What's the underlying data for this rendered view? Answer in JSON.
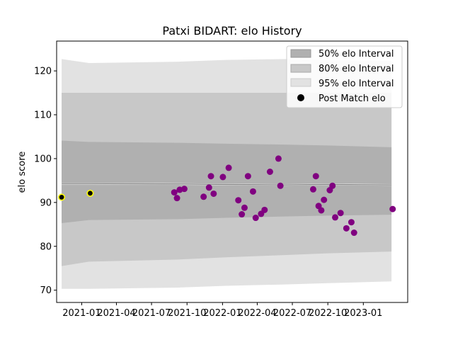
{
  "chart_data": {
    "type": "scatter",
    "title": "Patxi BIDART: elo History",
    "xlabel": "",
    "ylabel": "elo score",
    "x_axis": "date",
    "xlim": [
      "2020-10-28",
      "2023-04-26"
    ],
    "ylim": [
      67.2,
      126.8
    ],
    "x_ticks": [
      "2021-01",
      "2021-04",
      "2021-07",
      "2021-10",
      "2022-01",
      "2022-04",
      "2022-07",
      "2022-10",
      "2023-01"
    ],
    "y_ticks": [
      70,
      80,
      90,
      100,
      110,
      120
    ],
    "grid": false,
    "legend_placement": "top-right",
    "legend": [
      {
        "label": "50% elo Interval",
        "kind": "patch",
        "color": "#b0b0b0"
      },
      {
        "label": "80% elo Interval",
        "kind": "patch",
        "color": "#c8c8c8"
      },
      {
        "label": "95% elo Interval",
        "kind": "patch",
        "color": "#e2e2e2"
      },
      {
        "label": "Post Match elo",
        "kind": "marker",
        "color": "#000000"
      }
    ],
    "intervals": {
      "dates": [
        "2020-11-10",
        "2021-01-20",
        "2021-09-10",
        "2022-01-10",
        "2022-06-10",
        "2022-10-01",
        "2023-03-15"
      ],
      "mean": [
        94.3,
        94.3,
        94.2,
        94.1,
        94.0,
        94.1,
        94.0
      ],
      "p50": {
        "low": [
          85.3,
          86.0,
          86.2,
          86.5,
          86.8,
          87.0,
          87.2
        ],
        "high": [
          104.1,
          103.8,
          103.6,
          103.4,
          103.2,
          103.0,
          102.6
        ]
      },
      "p80": {
        "low": [
          75.5,
          76.5,
          77.0,
          77.5,
          78.0,
          78.4,
          78.8
        ],
        "high": [
          115.0,
          115.0,
          115.0,
          115.0,
          115.0,
          115.0,
          115.0
        ]
      },
      "p95": {
        "low": [
          70.3,
          70.3,
          70.6,
          71.0,
          71.3,
          71.6,
          72.0
        ],
        "high": [
          122.7,
          121.8,
          122.1,
          122.5,
          122.7,
          122.5,
          122.3
        ]
      }
    },
    "series": [
      {
        "name": "Post Match elo",
        "color": "#800080",
        "highlight_color": "#ffff00",
        "points": [
          {
            "x": "2020-11-10",
            "y": 91.2,
            "highlight": true
          },
          {
            "x": "2021-01-23",
            "y": 92.1,
            "highlight": true
          },
          {
            "x": "2021-08-29",
            "y": 92.3
          },
          {
            "x": "2021-09-05",
            "y": 91.0
          },
          {
            "x": "2021-09-12",
            "y": 92.9
          },
          {
            "x": "2021-09-24",
            "y": 93.1
          },
          {
            "x": "2021-11-13",
            "y": 91.3
          },
          {
            "x": "2021-11-27",
            "y": 93.4
          },
          {
            "x": "2021-12-02",
            "y": 96.0
          },
          {
            "x": "2021-12-09",
            "y": 92.0
          },
          {
            "x": "2022-01-02",
            "y": 95.8
          },
          {
            "x": "2022-01-17",
            "y": 97.9
          },
          {
            "x": "2022-02-11",
            "y": 90.5
          },
          {
            "x": "2022-02-20",
            "y": 87.3
          },
          {
            "x": "2022-02-27",
            "y": 88.8
          },
          {
            "x": "2022-03-08",
            "y": 96.0
          },
          {
            "x": "2022-03-21",
            "y": 92.5
          },
          {
            "x": "2022-03-28",
            "y": 86.5
          },
          {
            "x": "2022-04-11",
            "y": 87.4
          },
          {
            "x": "2022-04-20",
            "y": 88.3
          },
          {
            "x": "2022-05-04",
            "y": 97.0
          },
          {
            "x": "2022-05-26",
            "y": 100.0
          },
          {
            "x": "2022-05-31",
            "y": 93.8
          },
          {
            "x": "2022-08-24",
            "y": 93.0
          },
          {
            "x": "2022-08-31",
            "y": 96.0
          },
          {
            "x": "2022-09-07",
            "y": 89.2
          },
          {
            "x": "2022-09-14",
            "y": 88.2
          },
          {
            "x": "2022-09-21",
            "y": 90.6
          },
          {
            "x": "2022-10-06",
            "y": 92.8
          },
          {
            "x": "2022-10-13",
            "y": 93.8
          },
          {
            "x": "2022-10-20",
            "y": 86.6
          },
          {
            "x": "2022-11-03",
            "y": 87.6
          },
          {
            "x": "2022-11-18",
            "y": 84.1
          },
          {
            "x": "2022-12-01",
            "y": 85.5
          },
          {
            "x": "2022-12-08",
            "y": 83.1
          },
          {
            "x": "2023-03-18",
            "y": 88.5
          }
        ]
      }
    ]
  }
}
